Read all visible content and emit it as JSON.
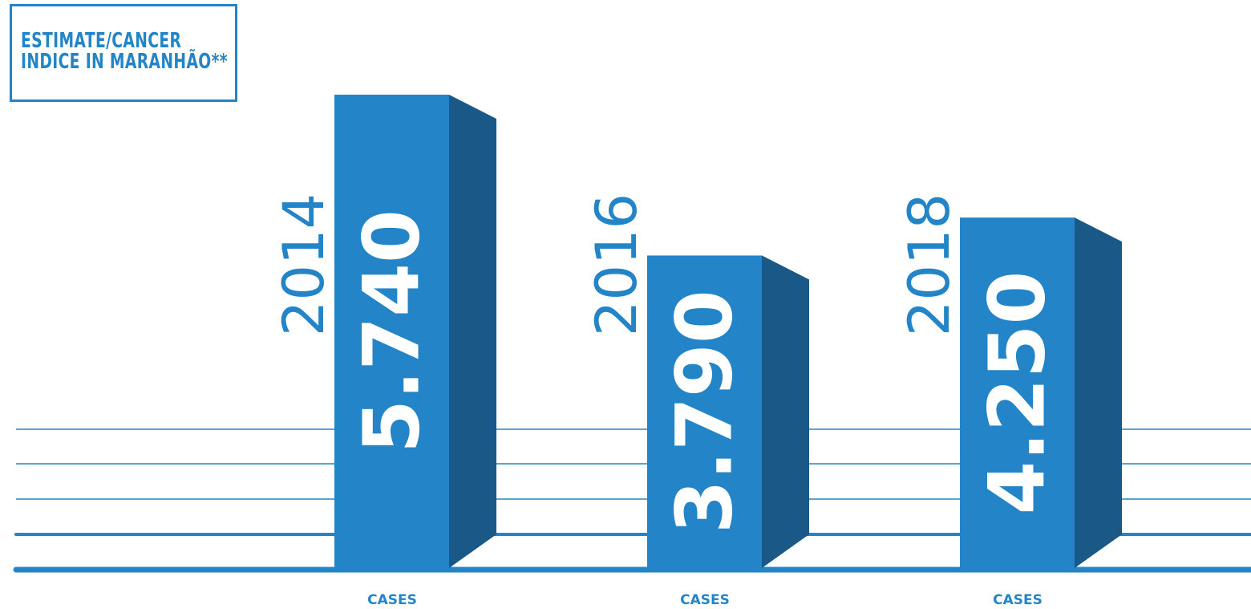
{
  "title_lines": [
    "ESTIMATE/CANCER",
    "INDICE IN MARANHÃO**"
  ],
  "colors": {
    "bar_front": "#2385c7",
    "bar_side": "#1a5987",
    "line": "#2385c7",
    "label": "#2385c7",
    "value_text": "#ffffff"
  },
  "chart_data": {
    "type": "bar",
    "title": "ESTIMATE/CANCER INDICE IN MARANHÃO**",
    "categories": [
      "2014",
      "2016",
      "2018"
    ],
    "values": [
      5740,
      3790,
      4250
    ],
    "value_labels": [
      "5.740",
      "3.790",
      "4.250"
    ],
    "xlabels": [
      "CASES",
      "CASES",
      "CASES"
    ],
    "legend": "none",
    "style": "3d-columns"
  }
}
